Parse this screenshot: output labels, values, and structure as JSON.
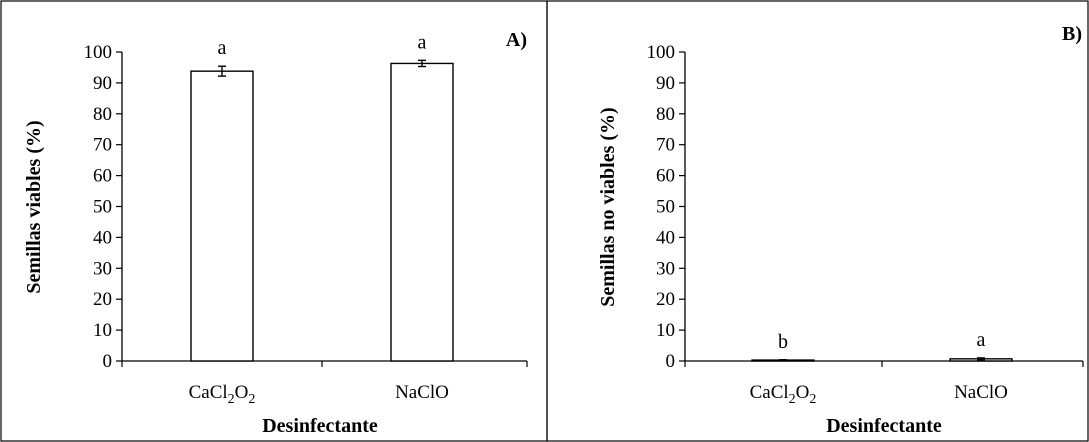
{
  "chart_data": [
    {
      "type": "bar",
      "panel_label": "A)",
      "xlabel": "Desinfectante",
      "ylabel": "Semillas viables (%)",
      "categories": [
        {
          "base": "CaCl",
          "sub1": "2",
          "mid": "O",
          "sub2": "2"
        },
        {
          "base": "NaClO",
          "sub1": "",
          "mid": "",
          "sub2": ""
        }
      ],
      "values": [
        93.8,
        96.3
      ],
      "errors": [
        1.6,
        1.0
      ],
      "significance": [
        "a",
        "a"
      ],
      "ylim": [
        0,
        100
      ],
      "yticks": [
        "0",
        "10",
        "20",
        "30",
        "40",
        "50",
        "60",
        "70",
        "80",
        "90",
        "100"
      ],
      "grid": false,
      "bar_fill": "#ffffff",
      "bar_stroke": "#000000"
    },
    {
      "type": "bar",
      "panel_label": "B)",
      "xlabel": "Desinfectante",
      "ylabel": "Semillas no viables (%)",
      "categories": [
        {
          "base": "CaCl",
          "sub1": "2",
          "mid": "O",
          "sub2": "2"
        },
        {
          "base": "NaClO",
          "sub1": "",
          "mid": "",
          "sub2": ""
        }
      ],
      "values": [
        0.3,
        0.7
      ],
      "errors": [
        0.1,
        0.3
      ],
      "significance": [
        "b",
        "a"
      ],
      "ylim": [
        0,
        100
      ],
      "yticks": [
        "0",
        "10",
        "20",
        "30",
        "40",
        "50",
        "60",
        "70",
        "80",
        "90",
        "100"
      ],
      "grid": false,
      "bar_fill": "#ffffff",
      "bar_stroke": "#000000"
    }
  ]
}
